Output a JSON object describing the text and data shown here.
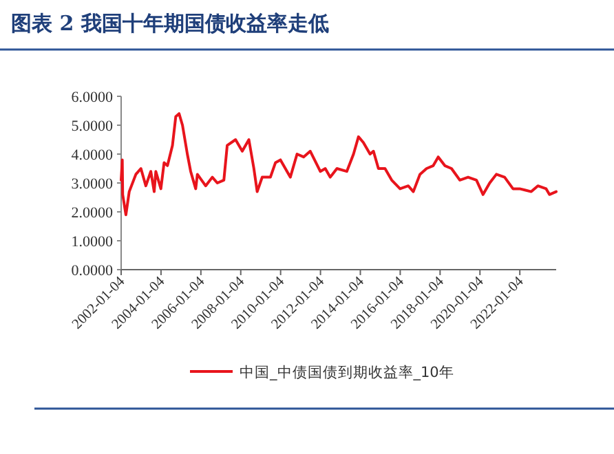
{
  "chart_data": {
    "type": "line",
    "title": "图表 2   我国十年期国债收益率走低",
    "x": [
      "2002-01-04",
      "2002-01-25",
      "2002-02",
      "2002-04",
      "2002-06",
      "2002-10",
      "2003-01",
      "2003-04",
      "2003-07",
      "2003-09",
      "2003-10",
      "2004-01",
      "2004-03",
      "2004-05",
      "2004-08",
      "2004-10",
      "2004-12",
      "2005-02",
      "2005-05",
      "2005-07",
      "2005-10",
      "2005-11",
      "2006-04",
      "2006-08",
      "2006-11",
      "2007-03",
      "2007-05",
      "2007-10",
      "2008-02",
      "2008-06",
      "2008-09",
      "2008-11",
      "2009-02",
      "2009-07",
      "2009-10",
      "2010-01",
      "2010-07",
      "2010-11",
      "2011-03",
      "2011-07",
      "2012-01",
      "2012-04",
      "2012-07",
      "2012-11",
      "2013-05",
      "2013-09",
      "2013-12",
      "2014-03",
      "2014-07",
      "2014-09",
      "2014-12",
      "2015-04",
      "2015-08",
      "2016-01",
      "2016-06",
      "2016-09",
      "2017-01",
      "2017-05",
      "2017-09",
      "2017-12",
      "2018-04",
      "2018-08",
      "2019-01",
      "2019-06",
      "2019-11",
      "2020-03",
      "2020-07",
      "2020-11",
      "2021-04",
      "2021-09",
      "2022-01",
      "2022-08",
      "2022-12",
      "2023-05",
      "2023-07",
      "2023-11"
    ],
    "series": [
      {
        "name": "中国_中债国债到期收益率_10年",
        "color": "#e8141c",
        "values": [
          3.1,
          3.8,
          2.6,
          1.9,
          2.7,
          3.3,
          3.5,
          2.9,
          3.4,
          2.7,
          3.4,
          2.8,
          3.7,
          3.6,
          4.3,
          5.3,
          5.4,
          5.0,
          4.0,
          3.4,
          2.8,
          3.3,
          2.9,
          3.2,
          3.0,
          3.1,
          4.3,
          4.5,
          4.1,
          4.5,
          3.5,
          2.7,
          3.2,
          3.2,
          3.7,
          3.8,
          3.2,
          4.0,
          3.9,
          4.1,
          3.4,
          3.5,
          3.2,
          3.5,
          3.4,
          4.0,
          4.6,
          4.4,
          4.0,
          4.1,
          3.5,
          3.5,
          3.1,
          2.8,
          2.9,
          2.7,
          3.3,
          3.5,
          3.6,
          3.9,
          3.6,
          3.5,
          3.1,
          3.2,
          3.1,
          2.6,
          3.0,
          3.3,
          3.2,
          2.8,
          2.8,
          2.7,
          2.9,
          2.8,
          2.6,
          2.7
        ]
      }
    ],
    "xlim": [
      "2002-01-04",
      "2023-11"
    ],
    "xticks": [
      "2002-01-04",
      "2004-01-04",
      "2006-01-04",
      "2008-01-04",
      "2010-01-04",
      "2012-01-04",
      "2014-01-04",
      "2016-01-04",
      "2018-01-04",
      "2020-01-04",
      "2022-01-04"
    ],
    "ylim": [
      0,
      6
    ],
    "yticks": [
      {
        "value": 0,
        "label": "0.0000"
      },
      {
        "value": 1,
        "label": "1.0000"
      },
      {
        "value": 2,
        "label": "2.0000"
      },
      {
        "value": 3,
        "label": "3.0000"
      },
      {
        "value": 4,
        "label": "4.0000"
      },
      {
        "value": 5,
        "label": "5.0000"
      },
      {
        "value": 6,
        "label": "6.0000"
      }
    ],
    "grid": false,
    "legend": "bottom",
    "marker": "none",
    "line_style": "solid"
  }
}
